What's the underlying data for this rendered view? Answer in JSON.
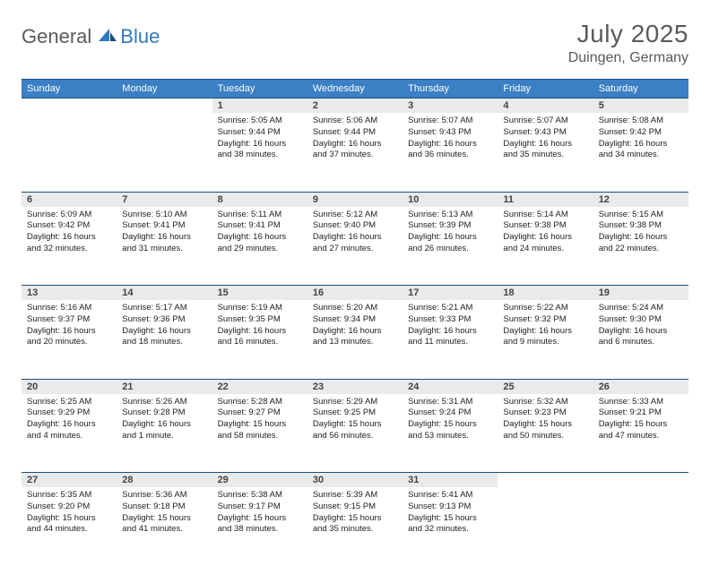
{
  "logo": {
    "general": "General",
    "blue": "Blue"
  },
  "title": "July 2025",
  "location": "Duingen, Germany",
  "colors": {
    "header_bg": "#3b7fc4",
    "header_border": "#1e4f7a",
    "daynum_bg": "#e9eaeb",
    "text_primary": "#5a5a5a",
    "accent": "#2f78c3"
  },
  "dayNames": [
    "Sunday",
    "Monday",
    "Tuesday",
    "Wednesday",
    "Thursday",
    "Friday",
    "Saturday"
  ],
  "startOffset": 2,
  "daysInMonth": 31,
  "days": {
    "1": {
      "sunrise": "5:05 AM",
      "sunset": "9:44 PM",
      "daylight": "16 hours and 38 minutes."
    },
    "2": {
      "sunrise": "5:06 AM",
      "sunset": "9:44 PM",
      "daylight": "16 hours and 37 minutes."
    },
    "3": {
      "sunrise": "5:07 AM",
      "sunset": "9:43 PM",
      "daylight": "16 hours and 36 minutes."
    },
    "4": {
      "sunrise": "5:07 AM",
      "sunset": "9:43 PM",
      "daylight": "16 hours and 35 minutes."
    },
    "5": {
      "sunrise": "5:08 AM",
      "sunset": "9:42 PM",
      "daylight": "16 hours and 34 minutes."
    },
    "6": {
      "sunrise": "5:09 AM",
      "sunset": "9:42 PM",
      "daylight": "16 hours and 32 minutes."
    },
    "7": {
      "sunrise": "5:10 AM",
      "sunset": "9:41 PM",
      "daylight": "16 hours and 31 minutes."
    },
    "8": {
      "sunrise": "5:11 AM",
      "sunset": "9:41 PM",
      "daylight": "16 hours and 29 minutes."
    },
    "9": {
      "sunrise": "5:12 AM",
      "sunset": "9:40 PM",
      "daylight": "16 hours and 27 minutes."
    },
    "10": {
      "sunrise": "5:13 AM",
      "sunset": "9:39 PM",
      "daylight": "16 hours and 26 minutes."
    },
    "11": {
      "sunrise": "5:14 AM",
      "sunset": "9:38 PM",
      "daylight": "16 hours and 24 minutes."
    },
    "12": {
      "sunrise": "5:15 AM",
      "sunset": "9:38 PM",
      "daylight": "16 hours and 22 minutes."
    },
    "13": {
      "sunrise": "5:16 AM",
      "sunset": "9:37 PM",
      "daylight": "16 hours and 20 minutes."
    },
    "14": {
      "sunrise": "5:17 AM",
      "sunset": "9:36 PM",
      "daylight": "16 hours and 18 minutes."
    },
    "15": {
      "sunrise": "5:19 AM",
      "sunset": "9:35 PM",
      "daylight": "16 hours and 16 minutes."
    },
    "16": {
      "sunrise": "5:20 AM",
      "sunset": "9:34 PM",
      "daylight": "16 hours and 13 minutes."
    },
    "17": {
      "sunrise": "5:21 AM",
      "sunset": "9:33 PM",
      "daylight": "16 hours and 11 minutes."
    },
    "18": {
      "sunrise": "5:22 AM",
      "sunset": "9:32 PM",
      "daylight": "16 hours and 9 minutes."
    },
    "19": {
      "sunrise": "5:24 AM",
      "sunset": "9:30 PM",
      "daylight": "16 hours and 6 minutes."
    },
    "20": {
      "sunrise": "5:25 AM",
      "sunset": "9:29 PM",
      "daylight": "16 hours and 4 minutes."
    },
    "21": {
      "sunrise": "5:26 AM",
      "sunset": "9:28 PM",
      "daylight": "16 hours and 1 minute."
    },
    "22": {
      "sunrise": "5:28 AM",
      "sunset": "9:27 PM",
      "daylight": "15 hours and 58 minutes."
    },
    "23": {
      "sunrise": "5:29 AM",
      "sunset": "9:25 PM",
      "daylight": "15 hours and 56 minutes."
    },
    "24": {
      "sunrise": "5:31 AM",
      "sunset": "9:24 PM",
      "daylight": "15 hours and 53 minutes."
    },
    "25": {
      "sunrise": "5:32 AM",
      "sunset": "9:23 PM",
      "daylight": "15 hours and 50 minutes."
    },
    "26": {
      "sunrise": "5:33 AM",
      "sunset": "9:21 PM",
      "daylight": "15 hours and 47 minutes."
    },
    "27": {
      "sunrise": "5:35 AM",
      "sunset": "9:20 PM",
      "daylight": "15 hours and 44 minutes."
    },
    "28": {
      "sunrise": "5:36 AM",
      "sunset": "9:18 PM",
      "daylight": "15 hours and 41 minutes."
    },
    "29": {
      "sunrise": "5:38 AM",
      "sunset": "9:17 PM",
      "daylight": "15 hours and 38 minutes."
    },
    "30": {
      "sunrise": "5:39 AM",
      "sunset": "9:15 PM",
      "daylight": "15 hours and 35 minutes."
    },
    "31": {
      "sunrise": "5:41 AM",
      "sunset": "9:13 PM",
      "daylight": "15 hours and 32 minutes."
    }
  },
  "labels": {
    "sunrise": "Sunrise: ",
    "sunset": "Sunset: ",
    "daylight": "Daylight: "
  }
}
